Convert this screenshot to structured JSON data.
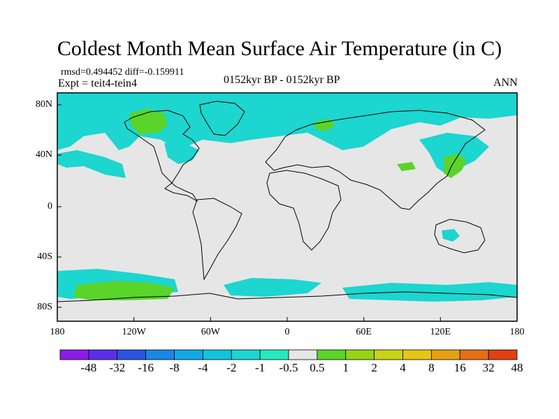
{
  "title": "Coldest Month Mean Surface Air Temperature (in C)",
  "stats": {
    "rmsd_label": "rmsd=",
    "rmsd": "0.494452",
    "diff_label": "diff=",
    "diff": "-0.159911"
  },
  "experiment": "Expt = teit4-tein4",
  "period": "0152kyr BP - 0152kyr BP",
  "season": "ANN",
  "lat_ticks": [
    "80N",
    "40N",
    "0",
    "40S",
    "80S"
  ],
  "lon_ticks": [
    "180",
    "120W",
    "60W",
    "0",
    "60E",
    "120E",
    "180"
  ],
  "colorbar": {
    "labels": [
      "-48",
      "-32",
      "-16",
      "-8",
      "-4",
      "-2",
      "-1",
      "-0.5",
      "0.5",
      "1",
      "2",
      "4",
      "8",
      "16",
      "32",
      "48"
    ],
    "colors": [
      "#8c1ce8",
      "#5a2ee8",
      "#2a55e0",
      "#1a86e6",
      "#12a8e6",
      "#12c3e0",
      "#1cd6cf",
      "#28e8c0",
      "#e6e6e6",
      "#5ad42a",
      "#96d418",
      "#c8d414",
      "#e6c614",
      "#e6a014",
      "#e67014",
      "#e04010"
    ]
  },
  "colors": {
    "background_field": "#e6e6e6",
    "coast": "#000000"
  }
}
